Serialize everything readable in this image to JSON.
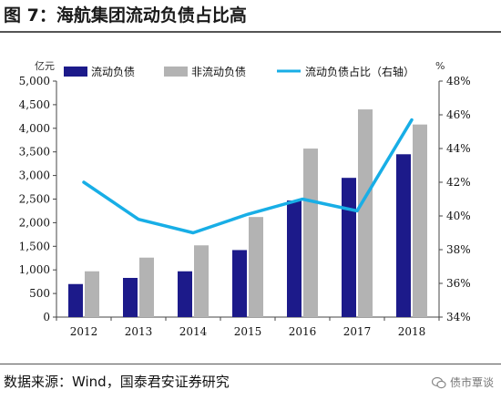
{
  "title": "图 7：海航集团流动负债占比高",
  "source": "数据来源：Wind，国泰君安证券研究",
  "watermark": "债市覃谈",
  "colors": {
    "current": "#1c1a8a",
    "noncurrent": "#b3b3b3",
    "ratio": "#18aee6"
  },
  "chart_data": {
    "type": "bar",
    "categories": [
      "2012",
      "2013",
      "2014",
      "2015",
      "2016",
      "2017",
      "2018"
    ],
    "series": [
      {
        "name": "流动负债",
        "type": "bar",
        "axis": "left",
        "values": [
          700,
          830,
          970,
          1420,
          2470,
          2950,
          3450
        ]
      },
      {
        "name": "非流动负债",
        "type": "bar",
        "axis": "left",
        "values": [
          970,
          1260,
          1520,
          2120,
          3570,
          4400,
          4080
        ]
      },
      {
        "name": "流动负债占比（右轴）",
        "type": "line",
        "axis": "right",
        "values": [
          42.0,
          39.8,
          39.0,
          40.1,
          41.0,
          40.3,
          45.7
        ]
      }
    ],
    "y_left": {
      "unit": "亿元",
      "ylim": [
        0,
        5000
      ],
      "ticks": [
        "0",
        "500",
        "1,000",
        "1,500",
        "2,000",
        "2,500",
        "3,000",
        "3,500",
        "4,000",
        "4,500",
        "5,000"
      ]
    },
    "y_right": {
      "unit": "%",
      "ylim": [
        34,
        48
      ],
      "ticks": [
        "34%",
        "36%",
        "38%",
        "40%",
        "42%",
        "44%",
        "46%",
        "48%"
      ]
    },
    "legend_position": "top",
    "grid": false
  }
}
